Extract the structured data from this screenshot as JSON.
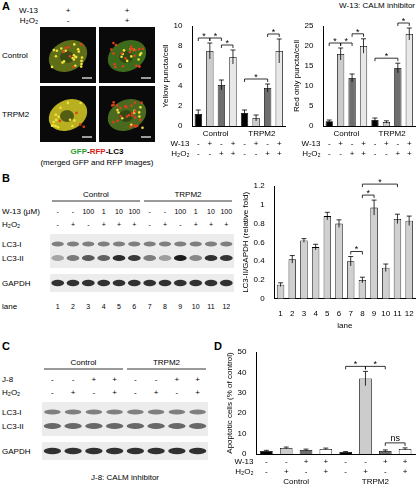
{
  "panel_labels": [
    "A",
    "B",
    "C",
    "D"
  ],
  "micrographs": {
    "header_rows": [
      {
        "name": "W-13",
        "labels": [
          "+",
          "+"
        ]
      },
      {
        "name": "H₂O₂",
        "labels": [
          "-",
          "+"
        ]
      }
    ],
    "row_labels": [
      "Control",
      "TRPM2"
    ],
    "caption": "GFP-RFP-LC3",
    "caption_note": "(merged GFP and RFP Images)"
  },
  "inhibitor_note": "W-13: CALM inhibitor",
  "blot_b": {
    "groups": [
      {
        "name": "Control",
        "size": 6
      },
      {
        "name": "TRPM2",
        "size": 6
      }
    ],
    "rows": [
      {
        "name": "W-13 (μM)",
        "labels": [
          "-",
          "-",
          "100",
          "1",
          "10",
          "100",
          "-",
          "-",
          "100",
          "1",
          "10",
          "100"
        ]
      },
      {
        "name": "H₂O₂",
        "labels": [
          "-",
          "+",
          "-",
          "+",
          "+",
          "+",
          "-",
          "+",
          "-",
          "+",
          "+",
          "+"
        ]
      }
    ],
    "bands": [
      "LC3-I",
      "LC3-II",
      "GAPDH"
    ],
    "lane_title": "lane",
    "lanes": [
      1,
      2,
      3,
      4,
      5,
      6,
      7,
      8,
      9,
      10,
      11,
      12
    ]
  },
  "blot_c": {
    "groups": [
      {
        "name": "Control",
        "size": 4
      },
      {
        "name": "TRPM2",
        "size": 4
      }
    ],
    "rows": [
      {
        "name": "J-8",
        "labels": [
          "-",
          "-",
          "+",
          "+",
          "-",
          "-",
          "+",
          "+"
        ]
      },
      {
        "name": "H₂O₂",
        "labels": [
          "-",
          "+",
          "-",
          "+",
          "-",
          "+",
          "-",
          "+"
        ]
      }
    ],
    "bands": [
      "LC3-I",
      "LC3-II",
      "GAPDH"
    ],
    "caption": "J-8: CALM inhibitor"
  },
  "chart_data": [
    {
      "type": "bar",
      "y_label": "Yellow puncta/cell",
      "values": [
        1.2,
        7.5,
        4.1,
        6.9,
        1.3,
        0.8,
        3.8,
        7.5
      ],
      "errors": [
        0.4,
        0.8,
        0.5,
        0.7,
        0.3,
        0.3,
        0.4,
        1.2
      ],
      "colors": [
        "#000000",
        "#cccccc",
        "#6e6e6e",
        "#e8e8e8",
        "#000000",
        "#cccccc",
        "#6e6e6e",
        "#e8e8e8"
      ],
      "ylim": [
        0,
        10
      ],
      "yticks": [
        0,
        2,
        4,
        6,
        8,
        10
      ],
      "grid": false,
      "x_rows": [
        {
          "name": "W-13",
          "labels": [
            "-",
            "+",
            "-",
            "+",
            "-",
            "+",
            "-",
            "+"
          ]
        },
        {
          "name": "H₂O₂",
          "labels": [
            "-",
            "-",
            "+",
            "+",
            "-",
            "-",
            "+",
            "+"
          ]
        }
      ],
      "groups": [
        {
          "name": "Control",
          "size": 4
        },
        {
          "name": "TRPM2",
          "size": 4
        }
      ],
      "annotations": [
        {
          "text": "*",
          "between": [
            0,
            1
          ]
        },
        {
          "text": "*",
          "between": [
            1,
            2
          ]
        },
        {
          "text": "*",
          "between": [
            2,
            3
          ]
        },
        {
          "text": "*",
          "between": [
            4,
            6
          ]
        },
        {
          "text": "*",
          "between": [
            6,
            7
          ]
        }
      ]
    },
    {
      "type": "bar",
      "y_label": "Red only puncta/cell",
      "values": [
        1.2,
        18,
        12,
        20,
        1.5,
        1.0,
        14.5,
        23
      ],
      "errors": [
        0.3,
        1.5,
        1.0,
        1.8,
        0.5,
        0.3,
        1.2,
        1.5
      ],
      "colors": [
        "#000000",
        "#cccccc",
        "#6e6e6e",
        "#e8e8e8",
        "#000000",
        "#cccccc",
        "#6e6e6e",
        "#e8e8e8"
      ],
      "ylim": [
        0,
        25
      ],
      "yticks": [
        0,
        5,
        10,
        15,
        20,
        25
      ],
      "grid": false,
      "x_rows": [
        {
          "name": "W-13",
          "labels": [
            "-",
            "+",
            "-",
            "+",
            "-",
            "+",
            "-",
            "+"
          ]
        },
        {
          "name": "H₂O₂",
          "labels": [
            "-",
            "-",
            "+",
            "+",
            "-",
            "-",
            "+",
            "+"
          ]
        }
      ],
      "groups": [
        {
          "name": "Control",
          "size": 4
        },
        {
          "name": "TRPM2",
          "size": 4
        }
      ],
      "annotations": [
        {
          "text": "*",
          "between": [
            0,
            1
          ]
        },
        {
          "text": "*",
          "between": [
            1,
            2
          ]
        },
        {
          "text": "*",
          "between": [
            2,
            3
          ]
        },
        {
          "text": "*",
          "between": [
            4,
            6
          ]
        },
        {
          "text": "*",
          "between": [
            6,
            7
          ]
        }
      ]
    },
    {
      "type": "bar",
      "y_label": "LC3-II/GAPDH (relative fold)",
      "x_label": "lane",
      "categories": [
        "1",
        "2",
        "3",
        "4",
        "5",
        "6",
        "7",
        "8",
        "9",
        "10",
        "11",
        "12"
      ],
      "values": [
        0.15,
        0.42,
        0.62,
        0.55,
        0.88,
        0.8,
        0.4,
        0.2,
        0.97,
        0.33,
        0.85,
        0.83
      ],
      "errors": [
        0.02,
        0.04,
        0.02,
        0.03,
        0.04,
        0.04,
        0.05,
        0.03,
        0.08,
        0.04,
        0.05,
        0.05
      ],
      "color": "#d0d0d0",
      "ylim": [
        0,
        1.2
      ],
      "yticks": [
        0,
        0.2,
        0.4,
        0.6,
        0.8,
        1,
        1.2
      ],
      "grid": false,
      "annotations": [
        {
          "text": "*",
          "between": [
            6,
            7
          ]
        },
        {
          "text": "*",
          "between": [
            7,
            8
          ]
        },
        {
          "text": "*",
          "between": [
            7,
            10
          ]
        }
      ]
    },
    {
      "type": "bar",
      "y_label": "Apoptotic cells (% of control)",
      "values": [
        1.5,
        3.0,
        2.0,
        2.5,
        1.0,
        37,
        1.5,
        2.5
      ],
      "errors": [
        0.3,
        0.4,
        0.4,
        0.4,
        0.2,
        3.5,
        0.5,
        0.5
      ],
      "colors": [
        "#000000",
        "#cccccc",
        "#6e6e6e",
        "#ffffff",
        "#000000",
        "#cccccc",
        "#6e6e6e",
        "#ffffff"
      ],
      "ylim": [
        0,
        50
      ],
      "yticks": [
        0,
        10,
        20,
        30,
        40,
        50
      ],
      "grid": false,
      "x_rows": [
        {
          "name": "W-13",
          "labels": [
            "-",
            "-",
            "+",
            "+",
            "-",
            "-",
            "+",
            "+"
          ]
        },
        {
          "name": "H₂O₂",
          "labels": [
            "-",
            "+",
            "-",
            "+",
            "-",
            "+",
            "-",
            "+"
          ]
        }
      ],
      "groups": [
        {
          "name": "Control",
          "size": 4
        },
        {
          "name": "TRPM2",
          "size": 4
        }
      ],
      "annotations": [
        {
          "text": "*",
          "between": [
            4,
            5
          ]
        },
        {
          "text": "*",
          "between": [
            5,
            6
          ]
        },
        {
          "text": "ns",
          "between": [
            6,
            7
          ]
        }
      ]
    }
  ]
}
